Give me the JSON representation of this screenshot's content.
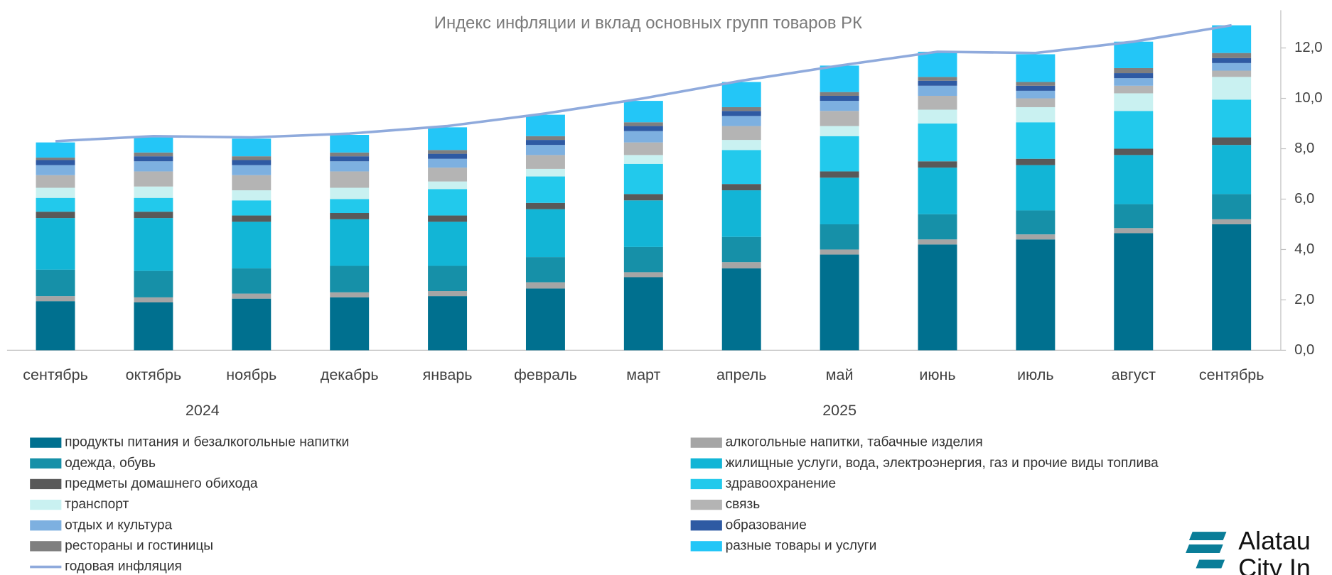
{
  "chart_data": {
    "type": "bar",
    "stacked": true,
    "title": "Индекс инфляции и вклад основных групп товаров РК",
    "categories": [
      "сентябрь",
      "октябрь",
      "ноябрь",
      "декабрь",
      "январь",
      "февраль",
      "март",
      "апрель",
      "май",
      "июнь",
      "июль",
      "август",
      "сентябрь"
    ],
    "year_groups": [
      {
        "label": "2024",
        "from": 0,
        "to": 3
      },
      {
        "label": "2025",
        "from": 4,
        "to": 12
      }
    ],
    "ylim": [
      0,
      13.5
    ],
    "yticks": [
      {
        "value": 0,
        "label": "0,0"
      },
      {
        "value": 2,
        "label": "2,0"
      },
      {
        "value": 4,
        "label": "4,0"
      },
      {
        "value": 6,
        "label": "6,0"
      },
      {
        "value": 8,
        "label": "8,0"
      },
      {
        "value": 10,
        "label": "10,0"
      },
      {
        "value": 12,
        "label": "12,0"
      }
    ],
    "series": [
      {
        "name": "продукты питания и безалкогольные напитки",
        "color": "#00708f",
        "values": [
          1.95,
          1.9,
          2.05,
          2.1,
          2.15,
          2.45,
          2.9,
          3.25,
          3.8,
          4.2,
          4.4,
          4.65,
          5.0
        ]
      },
      {
        "name": "алкогольные напитки, табачные изделия",
        "color": "#a5a5a5",
        "values": [
          0.2,
          0.2,
          0.2,
          0.2,
          0.2,
          0.25,
          0.2,
          0.25,
          0.2,
          0.2,
          0.2,
          0.2,
          0.2
        ]
      },
      {
        "name": "одежда, обувь",
        "color": "#1690a8",
        "values": [
          1.05,
          1.05,
          1.0,
          1.05,
          1.0,
          1.0,
          1.0,
          1.0,
          1.0,
          1.0,
          0.95,
          0.95,
          1.0
        ]
      },
      {
        "name": "жилищные услуги, вода, электроэнергия, газ и прочие виды топлива",
        "color": "#12b5d6",
        "values": [
          2.05,
          2.1,
          1.85,
          1.85,
          1.75,
          1.9,
          1.85,
          1.85,
          1.85,
          1.85,
          1.8,
          1.95,
          1.95
        ]
      },
      {
        "name": "предметы домашнего обихода",
        "color": "#595959",
        "values": [
          0.25,
          0.25,
          0.25,
          0.25,
          0.25,
          0.25,
          0.25,
          0.25,
          0.25,
          0.25,
          0.25,
          0.25,
          0.3
        ]
      },
      {
        "name": "здравоохранение",
        "color": "#22c9ec",
        "values": [
          0.55,
          0.55,
          0.6,
          0.55,
          1.05,
          1.05,
          1.2,
          1.35,
          1.4,
          1.5,
          1.45,
          1.5,
          1.5
        ]
      },
      {
        "name": "транспорт",
        "color": "#c9f1f1",
        "values": [
          0.4,
          0.45,
          0.4,
          0.45,
          0.3,
          0.3,
          0.35,
          0.4,
          0.4,
          0.55,
          0.6,
          0.7,
          0.9
        ]
      },
      {
        "name": "связь",
        "color": "#b4b4b4",
        "values": [
          0.5,
          0.6,
          0.6,
          0.65,
          0.55,
          0.55,
          0.5,
          0.55,
          0.6,
          0.55,
          0.35,
          0.3,
          0.25
        ]
      },
      {
        "name": "отдых и культура",
        "color": "#7db0e0",
        "values": [
          0.4,
          0.4,
          0.4,
          0.4,
          0.35,
          0.4,
          0.45,
          0.4,
          0.4,
          0.4,
          0.3,
          0.3,
          0.3
        ]
      },
      {
        "name": "образование",
        "color": "#2e5aa3",
        "values": [
          0.2,
          0.2,
          0.2,
          0.2,
          0.2,
          0.2,
          0.2,
          0.2,
          0.2,
          0.2,
          0.2,
          0.2,
          0.2
        ]
      },
      {
        "name": "рестораны и гостиницы",
        "color": "#7f7f7f",
        "values": [
          0.1,
          0.15,
          0.15,
          0.15,
          0.15,
          0.15,
          0.15,
          0.15,
          0.15,
          0.15,
          0.15,
          0.2,
          0.2
        ]
      },
      {
        "name": "разные товары и услуги",
        "color": "#23c6f7",
        "values": [
          0.6,
          0.6,
          0.7,
          0.7,
          0.9,
          0.85,
          0.85,
          1.0,
          1.05,
          1.0,
          1.1,
          1.05,
          1.1
        ]
      },
      {
        "name": "годовая инфляция",
        "color": "#8faadc",
        "type": "line",
        "values": [
          8.3,
          8.5,
          8.45,
          8.6,
          8.9,
          9.4,
          10.0,
          10.7,
          11.3,
          11.85,
          11.8,
          12.25,
          12.9
        ]
      }
    ]
  },
  "logo": {
    "line1": "Alatau",
    "line2": "City In"
  }
}
